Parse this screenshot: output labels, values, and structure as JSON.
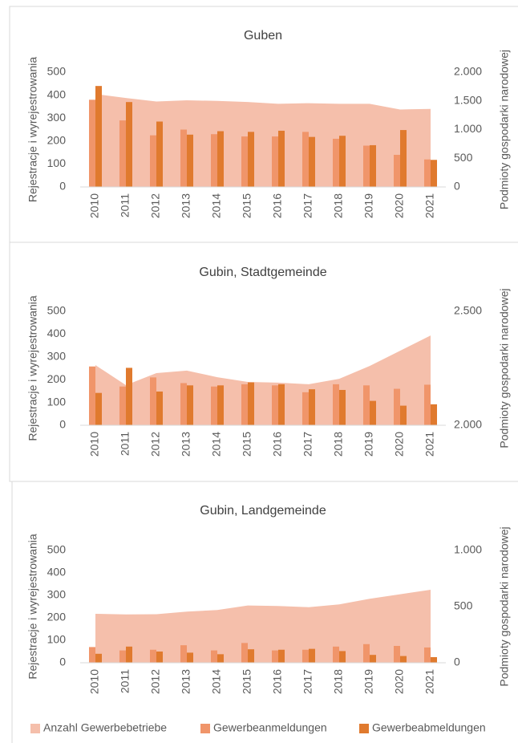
{
  "chart_data": [
    {
      "type": "bar",
      "title": "Guben",
      "categories": [
        "2010",
        "2011",
        "2012",
        "2013",
        "2014",
        "2015",
        "2016",
        "2017",
        "2018",
        "2019",
        "2020",
        "2021"
      ],
      "ylabel": "Rejestracje i wyrejestrowania",
      "y2label": "Podmioty gospodarki narodowej",
      "ylim": [
        0,
        500
      ],
      "yticks": [
        0,
        100,
        200,
        300,
        400,
        500
      ],
      "y2lim": [
        0,
        2000
      ],
      "y2ticks": [
        0,
        500,
        {
          "value": 1000,
          "label": "1.000"
        },
        {
          "value": 1500,
          "label": "1.500"
        },
        {
          "value": 2000,
          "label": "2.000"
        }
      ],
      "series": [
        {
          "name": "Anzahl Gewerbebetriebe",
          "kind": "area",
          "axis": "y2",
          "color": "#f5bfab",
          "values": [
            1620,
            1550,
            1490,
            1510,
            1500,
            1480,
            1450,
            1460,
            1450,
            1450,
            1350,
            1360
          ]
        },
        {
          "name": "Gewerbeanmeldungen",
          "kind": "bar",
          "color": "#f0956a",
          "values": [
            380,
            290,
            225,
            250,
            230,
            220,
            220,
            240,
            210,
            180,
            140,
            120
          ]
        },
        {
          "name": "Gewerbeabmeldungen",
          "kind": "bar",
          "color": "#e07a2e",
          "values": [
            440,
            370,
            285,
            228,
            243,
            240,
            245,
            218,
            223,
            182,
            248,
            118
          ]
        }
      ]
    },
    {
      "type": "bar",
      "title": "Gubin, Stadtgemeinde",
      "categories": [
        "2010",
        "2011",
        "2012",
        "2013",
        "2014",
        "2015",
        "2016",
        "2017",
        "2018",
        "2019",
        "2020",
        "2021"
      ],
      "ylabel": "Rejestracje i wyrejestrowania",
      "y2label": "Podmioty gospodarki narodowej",
      "ylim": [
        0,
        500
      ],
      "yticks": [
        0,
        100,
        200,
        300,
        400,
        500
      ],
      "y2lim": [
        2000,
        2500
      ],
      "y2ticks": [
        {
          "value": 2000,
          "label": "2.000"
        },
        {
          "value": 2500,
          "label": "2.500"
        }
      ],
      "series": [
        {
          "kind": "area",
          "axis": "y2",
          "color": "#f5bfab",
          "values": [
            2264,
            2176,
            2229,
            2240,
            2211,
            2190,
            2187,
            2180,
            2204,
            2260,
            2327,
            2394
          ]
        },
        {
          "kind": "bar",
          "color": "#f0956a",
          "values": [
            258,
            170,
            210,
            185,
            170,
            180,
            175,
            145,
            180,
            175,
            160,
            178
          ]
        },
        {
          "kind": "bar",
          "color": "#e07a2e",
          "values": [
            142,
            252,
            148,
            175,
            175,
            188,
            180,
            158,
            155,
            107,
            86,
            92
          ]
        }
      ]
    },
    {
      "type": "bar",
      "title": "Gubin, Landgemeinde",
      "categories": [
        "2010",
        "2011",
        "2012",
        "2013",
        "2014",
        "2015",
        "2016",
        "2017",
        "2018",
        "2019",
        "2020",
        "2021"
      ],
      "ylabel": "Rejestracje i wyrejestrowania",
      "y2label": "Podmioty gospodarki narodowej",
      "ylim": [
        0,
        500
      ],
      "yticks": [
        0,
        100,
        200,
        300,
        400,
        500
      ],
      "y2lim": [
        0,
        1000
      ],
      "y2ticks": [
        0,
        500,
        {
          "value": 1000,
          "label": "1.000"
        }
      ],
      "series": [
        {
          "kind": "area",
          "axis": "y2",
          "color": "#f5bfab",
          "values": [
            436,
            430,
            432,
            455,
            470,
            510,
            505,
            495,
            520,
            570,
            610,
            650
          ]
        },
        {
          "kind": "bar",
          "color": "#f0956a",
          "values": [
            70,
            55,
            58,
            78,
            55,
            88,
            55,
            58,
            72,
            83,
            75,
            68
          ]
        },
        {
          "kind": "bar",
          "color": "#e07a2e",
          "values": [
            40,
            72,
            50,
            45,
            38,
            60,
            58,
            62,
            52,
            35,
            30,
            25
          ]
        }
      ]
    }
  ]
}
